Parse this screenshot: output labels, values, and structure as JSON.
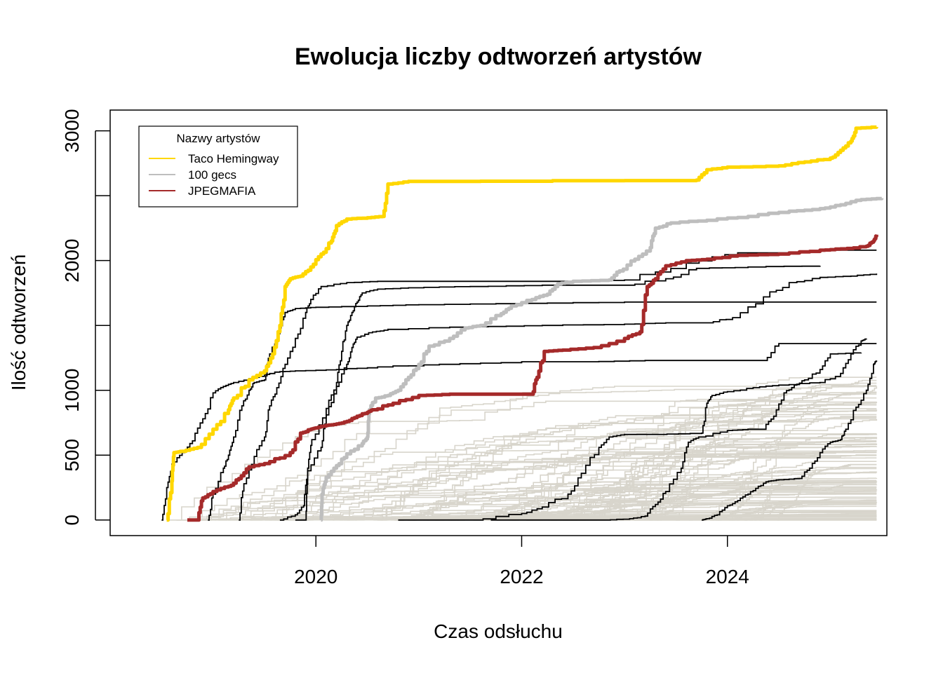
{
  "chart_data": {
    "type": "line",
    "title": "Ewolucja liczby odtworzeń artystów",
    "xlabel": "Czas odsłuchu",
    "ylabel": "Ilość odtworzeń",
    "xlim": [
      2018.0,
      2025.55
    ],
    "ylim": [
      -120,
      3160
    ],
    "x_ticks": [
      2020,
      2022,
      2024
    ],
    "x_tick_labels": [
      "2020",
      "2022",
      "2024"
    ],
    "y_ticks": [
      0,
      500,
      1000,
      1500,
      2000,
      2500,
      3000
    ],
    "y_tick_labels": [
      "0",
      "500",
      "1000",
      "",
      "2000",
      "",
      "3000"
    ],
    "legend": {
      "title": "Nazwy artystów",
      "position": "top-left",
      "entries": [
        {
          "name": "Taco Hemingway",
          "color": "#FFD700"
        },
        {
          "name": "100 gecs",
          "color": "#BEBEBE"
        },
        {
          "name": "JPEGMAFIA",
          "color": "#A52A2A"
        }
      ]
    },
    "highlighted_series": [
      {
        "name": "Taco Hemingway",
        "color": "#FFD700",
        "points": [
          [
            2018.55,
            0
          ],
          [
            2018.6,
            300
          ],
          [
            2018.62,
            520
          ],
          [
            2018.7,
            530
          ],
          [
            2018.85,
            560
          ],
          [
            2019.0,
            700
          ],
          [
            2019.15,
            850
          ],
          [
            2019.2,
            940
          ],
          [
            2019.35,
            1080
          ],
          [
            2019.5,
            1150
          ],
          [
            2019.58,
            1280
          ],
          [
            2019.65,
            1500
          ],
          [
            2019.7,
            1800
          ],
          [
            2019.75,
            1860
          ],
          [
            2019.85,
            1880
          ],
          [
            2019.95,
            1950
          ],
          [
            2020.05,
            2050
          ],
          [
            2020.15,
            2150
          ],
          [
            2020.2,
            2270
          ],
          [
            2020.3,
            2320
          ],
          [
            2020.5,
            2330
          ],
          [
            2020.65,
            2340
          ],
          [
            2020.7,
            2590
          ],
          [
            2020.9,
            2610
          ],
          [
            2023.7,
            2620
          ],
          [
            2023.8,
            2700
          ],
          [
            2024.0,
            2720
          ],
          [
            2024.5,
            2730
          ],
          [
            2024.75,
            2760
          ],
          [
            2025.0,
            2790
          ],
          [
            2025.1,
            2850
          ],
          [
            2025.2,
            2920
          ],
          [
            2025.25,
            3020
          ],
          [
            2025.45,
            3030
          ]
        ]
      },
      {
        "name": "100 gecs",
        "color": "#BEBEBE",
        "points": [
          [
            2020.05,
            0
          ],
          [
            2020.06,
            200
          ],
          [
            2020.1,
            330
          ],
          [
            2020.2,
            420
          ],
          [
            2020.3,
            510
          ],
          [
            2020.45,
            590
          ],
          [
            2020.5,
            640
          ],
          [
            2020.52,
            850
          ],
          [
            2020.58,
            940
          ],
          [
            2020.7,
            960
          ],
          [
            2020.8,
            1000
          ],
          [
            2020.9,
            1100
          ],
          [
            2021.0,
            1200
          ],
          [
            2021.1,
            1340
          ],
          [
            2021.3,
            1400
          ],
          [
            2021.45,
            1480
          ],
          [
            2021.6,
            1500
          ],
          [
            2021.8,
            1590
          ],
          [
            2021.9,
            1650
          ],
          [
            2022.1,
            1700
          ],
          [
            2022.25,
            1740
          ],
          [
            2022.35,
            1820
          ],
          [
            2022.5,
            1840
          ],
          [
            2022.85,
            1850
          ],
          [
            2022.95,
            1920
          ],
          [
            2023.1,
            2010
          ],
          [
            2023.25,
            2100
          ],
          [
            2023.3,
            2250
          ],
          [
            2023.45,
            2290
          ],
          [
            2023.8,
            2310
          ],
          [
            2024.2,
            2340
          ],
          [
            2024.6,
            2380
          ],
          [
            2024.9,
            2400
          ],
          [
            2025.1,
            2430
          ],
          [
            2025.3,
            2470
          ],
          [
            2025.5,
            2480
          ]
        ]
      },
      {
        "name": "JPEGMAFIA",
        "color": "#A52A2A",
        "points": [
          [
            2018.75,
            0
          ],
          [
            2018.85,
            0
          ],
          [
            2018.9,
            170
          ],
          [
            2019.0,
            220
          ],
          [
            2019.15,
            260
          ],
          [
            2019.25,
            320
          ],
          [
            2019.35,
            410
          ],
          [
            2019.55,
            450
          ],
          [
            2019.75,
            520
          ],
          [
            2019.85,
            670
          ],
          [
            2019.95,
            700
          ],
          [
            2020.0,
            710
          ],
          [
            2020.1,
            730
          ],
          [
            2020.2,
            740
          ],
          [
            2020.3,
            760
          ],
          [
            2020.4,
            800
          ],
          [
            2020.5,
            830
          ],
          [
            2020.55,
            850
          ],
          [
            2020.75,
            900
          ],
          [
            2021.0,
            960
          ],
          [
            2021.3,
            970
          ],
          [
            2022.1,
            970
          ],
          [
            2022.15,
            1100
          ],
          [
            2022.22,
            1300
          ],
          [
            2022.4,
            1310
          ],
          [
            2022.7,
            1330
          ],
          [
            2023.0,
            1400
          ],
          [
            2023.15,
            1450
          ],
          [
            2023.22,
            1800
          ],
          [
            2023.3,
            1860
          ],
          [
            2023.4,
            1960
          ],
          [
            2023.6,
            2000
          ],
          [
            2023.8,
            2010
          ],
          [
            2024.1,
            2040
          ],
          [
            2024.5,
            2050
          ],
          [
            2024.9,
            2080
          ],
          [
            2025.1,
            2090
          ],
          [
            2025.35,
            2110
          ],
          [
            2025.42,
            2150
          ],
          [
            2025.45,
            2200
          ]
        ]
      }
    ],
    "top_artist_series_color": "#000000",
    "top_artist_series": [
      {
        "points": [
          [
            2018.5,
            0
          ],
          [
            2018.55,
            250
          ],
          [
            2018.6,
            430
          ],
          [
            2018.7,
            520
          ],
          [
            2018.8,
            610
          ],
          [
            2018.9,
            780
          ],
          [
            2019.0,
            980
          ],
          [
            2019.1,
            1030
          ],
          [
            2019.2,
            1060
          ],
          [
            2019.4,
            1100
          ],
          [
            2019.6,
            1140
          ],
          [
            2019.8,
            1150
          ],
          [
            2020.2,
            1160
          ],
          [
            2020.6,
            1180
          ],
          [
            2021.2,
            1200
          ],
          [
            2022.0,
            1220
          ],
          [
            2022.6,
            1220
          ],
          [
            2023.2,
            1230
          ],
          [
            2023.9,
            1230
          ],
          [
            2024.35,
            1230
          ],
          [
            2024.5,
            1360
          ],
          [
            2025.45,
            1360
          ]
        ]
      },
      {
        "points": [
          [
            2018.95,
            0
          ],
          [
            2019.0,
            200
          ],
          [
            2019.1,
            400
          ],
          [
            2019.15,
            500
          ],
          [
            2019.2,
            640
          ],
          [
            2019.28,
            880
          ],
          [
            2019.35,
            1000
          ],
          [
            2019.4,
            1060
          ],
          [
            2019.5,
            1080
          ],
          [
            2019.55,
            1280
          ],
          [
            2019.65,
            1480
          ],
          [
            2019.7,
            1600
          ],
          [
            2019.8,
            1630
          ],
          [
            2020.0,
            1640
          ],
          [
            2020.5,
            1650
          ],
          [
            2021.0,
            1660
          ],
          [
            2022.0,
            1670
          ],
          [
            2023.0,
            1680
          ],
          [
            2025.45,
            1680
          ]
        ]
      },
      {
        "points": [
          [
            2019.25,
            0
          ],
          [
            2019.3,
            280
          ],
          [
            2019.4,
            490
          ],
          [
            2019.5,
            640
          ],
          [
            2019.55,
            880
          ],
          [
            2019.62,
            1020
          ],
          [
            2019.7,
            1200
          ],
          [
            2019.8,
            1400
          ],
          [
            2019.9,
            1600
          ],
          [
            2019.95,
            1700
          ],
          [
            2020.05,
            1800
          ],
          [
            2020.3,
            1830
          ],
          [
            2020.6,
            1840
          ],
          [
            2021.0,
            1840
          ],
          [
            2022.0,
            1840
          ],
          [
            2022.5,
            1840
          ],
          [
            2023.0,
            1850
          ],
          [
            2023.6,
            1980
          ],
          [
            2024.1,
            2060
          ],
          [
            2024.6,
            2060
          ],
          [
            2025.0,
            2080
          ],
          [
            2025.45,
            2080
          ]
        ]
      },
      {
        "points": [
          [
            2019.65,
            0
          ],
          [
            2019.8,
            40
          ],
          [
            2019.88,
            110
          ],
          [
            2019.92,
            400
          ],
          [
            2019.96,
            620
          ],
          [
            2020.1,
            860
          ],
          [
            2020.2,
            1060
          ],
          [
            2020.25,
            1300
          ],
          [
            2020.3,
            1500
          ],
          [
            2020.35,
            1600
          ],
          [
            2020.4,
            1680
          ],
          [
            2020.45,
            1750
          ],
          [
            2020.6,
            1780
          ],
          [
            2020.9,
            1790
          ],
          [
            2021.5,
            1800
          ],
          [
            2022.2,
            1810
          ],
          [
            2023.0,
            1810
          ],
          [
            2023.4,
            1860
          ],
          [
            2023.7,
            1940
          ],
          [
            2024.2,
            1950
          ],
          [
            2024.9,
            1960
          ]
        ]
      },
      {
        "points": [
          [
            2019.8,
            0
          ],
          [
            2019.9,
            0
          ],
          [
            2019.92,
            380
          ],
          [
            2020.05,
            560
          ],
          [
            2020.1,
            810
          ],
          [
            2020.2,
            1030
          ],
          [
            2020.3,
            1200
          ],
          [
            2020.35,
            1330
          ],
          [
            2020.4,
            1410
          ],
          [
            2020.55,
            1450
          ],
          [
            2020.7,
            1470
          ],
          [
            2021.5,
            1490
          ],
          [
            2022.2,
            1500
          ],
          [
            2023.0,
            1510
          ],
          [
            2023.4,
            1520
          ],
          [
            2023.8,
            1520
          ],
          [
            2024.05,
            1560
          ],
          [
            2024.35,
            1720
          ],
          [
            2024.6,
            1830
          ],
          [
            2024.9,
            1870
          ],
          [
            2025.2,
            1880
          ],
          [
            2025.45,
            1900
          ]
        ]
      },
      {
        "points": [
          [
            2020.8,
            0
          ],
          [
            2021.5,
            0
          ],
          [
            2022.0,
            50
          ],
          [
            2022.2,
            100
          ],
          [
            2022.45,
            200
          ],
          [
            2022.58,
            360
          ],
          [
            2022.75,
            560
          ],
          [
            2022.85,
            640
          ],
          [
            2023.0,
            660
          ],
          [
            2023.3,
            660
          ],
          [
            2023.75,
            670
          ],
          [
            2023.8,
            900
          ],
          [
            2023.85,
            960
          ],
          [
            2024.0,
            990
          ],
          [
            2024.25,
            1020
          ],
          [
            2024.5,
            1040
          ],
          [
            2024.9,
            1060
          ],
          [
            2025.1,
            1130
          ],
          [
            2025.2,
            1280
          ],
          [
            2025.3,
            1380
          ],
          [
            2025.35,
            1400
          ]
        ]
      },
      {
        "points": [
          [
            2021.7,
            0
          ],
          [
            2022.0,
            0
          ],
          [
            2022.8,
            0
          ],
          [
            2023.05,
            10
          ],
          [
            2023.2,
            30
          ],
          [
            2023.3,
            120
          ],
          [
            2023.4,
            220
          ],
          [
            2023.55,
            400
          ],
          [
            2023.62,
            600
          ],
          [
            2023.72,
            640
          ],
          [
            2024.0,
            690
          ],
          [
            2024.2,
            700
          ],
          [
            2024.35,
            700
          ],
          [
            2024.45,
            800
          ],
          [
            2024.55,
            980
          ],
          [
            2024.65,
            1040
          ],
          [
            2024.75,
            1080
          ],
          [
            2024.9,
            1160
          ],
          [
            2025.0,
            1280
          ],
          [
            2025.3,
            1290
          ]
        ]
      },
      {
        "points": [
          [
            2023.75,
            0
          ],
          [
            2023.8,
            10
          ],
          [
            2023.9,
            40
          ],
          [
            2024.0,
            110
          ],
          [
            2024.1,
            150
          ],
          [
            2024.2,
            200
          ],
          [
            2024.3,
            260
          ],
          [
            2024.4,
            300
          ],
          [
            2024.5,
            310
          ],
          [
            2024.7,
            320
          ],
          [
            2024.8,
            400
          ],
          [
            2024.9,
            520
          ],
          [
            2025.0,
            600
          ],
          [
            2025.1,
            620
          ],
          [
            2025.15,
            700
          ],
          [
            2025.25,
            870
          ],
          [
            2025.35,
            1000
          ],
          [
            2025.42,
            1200
          ],
          [
            2025.45,
            1230
          ]
        ]
      }
    ],
    "background_series": {
      "count": 110,
      "color": "#D8D5CC",
      "description_values_range": [
        0,
        1110
      ],
      "x_range": [
        2018.5,
        2025.45
      ]
    }
  }
}
